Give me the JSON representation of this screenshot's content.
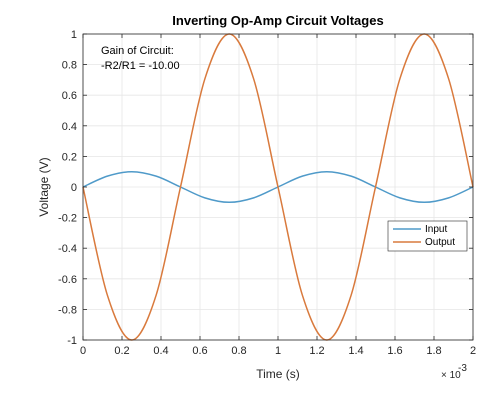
{
  "chart_data": {
    "type": "line",
    "title": "Inverting Op-Amp Circuit Voltages",
    "xlabel": "Time (s)",
    "ylabel": "Voltage (V)",
    "x_multiplier_label": "× 10",
    "x_multiplier_exponent": "-3",
    "xlim": [
      0,
      2
    ],
    "ylim": [
      -1,
      1
    ],
    "grid": true,
    "legend_position": "right",
    "x_ticks": [
      "0",
      "0.2",
      "0.4",
      "0.6",
      "0.8",
      "1",
      "1.2",
      "1.4",
      "1.6",
      "1.8",
      "2"
    ],
    "y_ticks": [
      "-1",
      "-0.8",
      "-0.6",
      "-0.4",
      "-0.2",
      "0",
      "0.2",
      "0.4",
      "0.6",
      "0.8",
      "1"
    ],
    "annotation": [
      "Gain of Circuit:",
      "-R2/R1 = -10.00"
    ],
    "series": [
      {
        "name": "Input",
        "color": "#4f9ac9",
        "x": [
          0,
          0.125,
          0.25,
          0.375,
          0.5,
          0.625,
          0.75,
          0.875,
          1.0,
          1.125,
          1.25,
          1.375,
          1.5,
          1.625,
          1.75,
          1.875,
          2.0
        ],
        "values": [
          0,
          0.071,
          0.1,
          0.071,
          0,
          -0.071,
          -0.1,
          -0.071,
          0,
          0.071,
          0.1,
          0.071,
          0,
          -0.071,
          -0.1,
          -0.071,
          0
        ]
      },
      {
        "name": "Output",
        "color": "#d97a3d",
        "x": [
          0,
          0.125,
          0.25,
          0.375,
          0.5,
          0.625,
          0.75,
          0.875,
          1.0,
          1.125,
          1.25,
          1.375,
          1.5,
          1.625,
          1.75,
          1.875,
          2.0
        ],
        "values": [
          0,
          -0.707,
          -1,
          -0.707,
          0,
          0.707,
          1,
          0.707,
          0,
          -0.707,
          -1,
          -0.707,
          0,
          0.707,
          1,
          0.707,
          0
        ]
      }
    ]
  }
}
